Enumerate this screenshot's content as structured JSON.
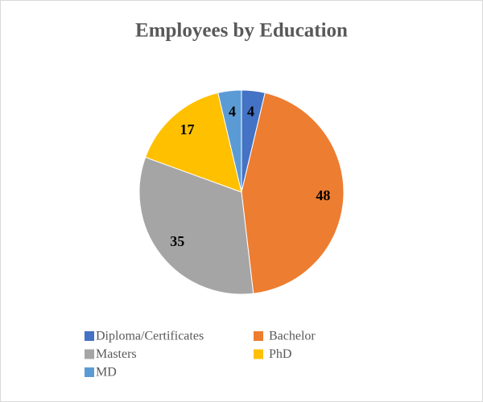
{
  "chart_data": {
    "type": "pie",
    "title": "Employees by Education",
    "categories": [
      "Diploma/Certificates",
      "Bachelor",
      "Masters",
      "PhD",
      "MD"
    ],
    "values": [
      4,
      48,
      35,
      17,
      4
    ],
    "colors": [
      "#4472c4",
      "#ed7d31",
      "#a5a5a5",
      "#ffc000",
      "#5b9bd5"
    ],
    "legend": "bottom"
  }
}
